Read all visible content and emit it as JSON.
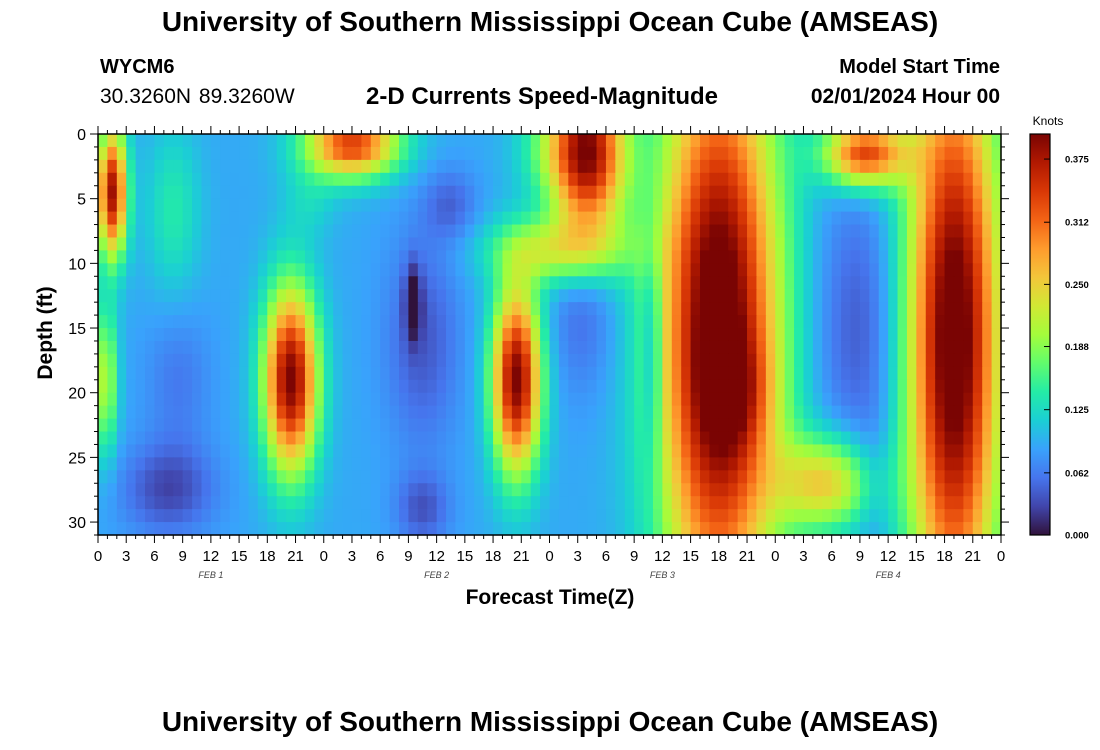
{
  "header": {
    "title": "University of Southern Mississippi Ocean Cube (AMSEAS)",
    "station_id": "WYCM6",
    "station_coords": "30.3260N  89.3260W",
    "chart_title": "2-D Currents Speed-Magnitude",
    "start_label": "Model Start Time",
    "start_value": "02/01/2024 Hour 00"
  },
  "footer": {
    "title": "University of Southern Mississippi Ocean Cube (AMSEAS)"
  },
  "chart_data": {
    "type": "heatmap",
    "title": "2-D Currents Speed-Magnitude",
    "xlabel": "Forecast Time(Z)",
    "ylabel": "Depth (ft)",
    "x_unit": "forecast hour",
    "xlim": [
      0,
      96
    ],
    "ylim": [
      31,
      0
    ],
    "x_ticks": [
      0,
      3,
      6,
      9,
      12,
      15,
      18,
      21,
      24,
      27,
      30,
      33,
      36,
      39,
      42,
      45,
      48,
      51,
      54,
      57,
      60,
      63,
      66,
      69,
      72,
      75,
      78,
      81,
      84,
      87,
      90,
      93,
      96
    ],
    "x_tick_labels": [
      "0",
      "3",
      "6",
      "9",
      "12",
      "15",
      "18",
      "21",
      "0",
      "3",
      "6",
      "9",
      "12",
      "15",
      "18",
      "21",
      "0",
      "3",
      "6",
      "9",
      "12",
      "15",
      "18",
      "21",
      "0",
      "3",
      "6",
      "9",
      "12",
      "15",
      "18",
      "21",
      "0"
    ],
    "day_labels": [
      {
        "hour": 12,
        "label": "FEB 1"
      },
      {
        "hour": 36,
        "label": "FEB 2"
      },
      {
        "hour": 60,
        "label": "FEB 3"
      },
      {
        "hour": 84,
        "label": "FEB 4"
      }
    ],
    "y_ticks": [
      0,
      5,
      10,
      15,
      20,
      25,
      30
    ],
    "y_tick_labels": [
      "0",
      "5",
      "10",
      "15",
      "20",
      "25",
      "30"
    ],
    "colorbar": {
      "label": "Knots",
      "min": 0,
      "max": 0.4,
      "ticks": [
        0.0,
        0.062,
        0.125,
        0.188,
        0.25,
        0.312,
        0.375
      ],
      "tick_labels": [
        "0.000",
        "0.062",
        "0.125",
        "0.188",
        "0.250",
        "0.312",
        "0.375"
      ],
      "colormap": [
        "#30123b",
        "#4145ab",
        "#4675ed",
        "#39a2fc",
        "#1bcfd4",
        "#24eca6",
        "#61fc6c",
        "#a4fc3b",
        "#d1e834",
        "#f3c63a",
        "#fe9b2d",
        "#f36315",
        "#d93806",
        "#b11901",
        "#7a0403"
      ]
    },
    "speed_features_knots": {
      "background": 0.09,
      "blobs": [
        {
          "t": 1.5,
          "d": 4.5,
          "st": 1.1,
          "sd": 3.5,
          "amp": 0.29
        },
        {
          "t": 7.5,
          "d": 27.5,
          "st": 3.5,
          "sd": 2.5,
          "amp": -0.06
        },
        {
          "t": 8.5,
          "d": 19.0,
          "st": 2.5,
          "sd": 4.0,
          "amp": -0.03
        },
        {
          "t": 0.8,
          "d": 19.0,
          "st": 0.9,
          "sd": 4.0,
          "amp": 0.12
        },
        {
          "t": 8.0,
          "d": 6.0,
          "st": 2.0,
          "sd": 4.5,
          "amp": 0.05
        },
        {
          "t": 20.5,
          "d": 19.0,
          "st": 2.0,
          "sd": 5.0,
          "amp": 0.31
        },
        {
          "t": 27.0,
          "d": 0.8,
          "st": 3.5,
          "sd": 1.8,
          "amp": 0.25
        },
        {
          "t": 22.5,
          "d": 5.0,
          "st": 2.0,
          "sd": 2.0,
          "amp": 0.03
        },
        {
          "t": 34.5,
          "d": 16.0,
          "st": 2.8,
          "sd": 6.0,
          "amp": -0.05
        },
        {
          "t": 34.5,
          "d": 29.0,
          "st": 2.0,
          "sd": 2.0,
          "amp": -0.05
        },
        {
          "t": 33.5,
          "d": 13.0,
          "st": 0.6,
          "sd": 2.0,
          "amp": -0.08
        },
        {
          "t": 37.5,
          "d": 5.5,
          "st": 2.0,
          "sd": 2.0,
          "amp": -0.04
        },
        {
          "t": 44.5,
          "d": 19.0,
          "st": 1.8,
          "sd": 5.0,
          "amp": 0.31
        },
        {
          "t": 49.0,
          "d": 9.0,
          "st": 5.0,
          "sd": 1.8,
          "amp": 0.12
        },
        {
          "t": 52.0,
          "d": 1.5,
          "st": 2.8,
          "sd": 4.5,
          "amp": 0.31
        },
        {
          "t": 47.5,
          "d": 1.0,
          "st": 2.5,
          "sd": 2.5,
          "amp": 0.04
        },
        {
          "t": 51.5,
          "d": 13.0,
          "st": 2.5,
          "sd": 5.0,
          "amp": -0.04
        },
        {
          "t": 59.0,
          "d": 17.0,
          "st": 0.5,
          "sd": 6.0,
          "amp": -0.08
        },
        {
          "t": 66.0,
          "d": 15.5,
          "st": 4.5,
          "sd": 16.0,
          "amp": 0.35
        },
        {
          "t": 81.0,
          "d": 15.0,
          "st": 3.5,
          "sd": 8.0,
          "amp": -0.05
        },
        {
          "t": 77.5,
          "d": 27.0,
          "st": 3.5,
          "sd": 2.5,
          "amp": 0.16
        },
        {
          "t": 82.5,
          "d": 27.5,
          "st": 1.3,
          "sd": 4.0,
          "amp": -0.02
        },
        {
          "t": 91.0,
          "d": 16.0,
          "st": 3.5,
          "sd": 16.0,
          "amp": 0.34
        },
        {
          "t": 81.5,
          "d": 1.5,
          "st": 3.0,
          "sd": 1.8,
          "amp": 0.25
        },
        {
          "t": 68.0,
          "d": 20.0,
          "st": 2.5,
          "sd": 3.0,
          "amp": 0.05
        }
      ]
    }
  }
}
